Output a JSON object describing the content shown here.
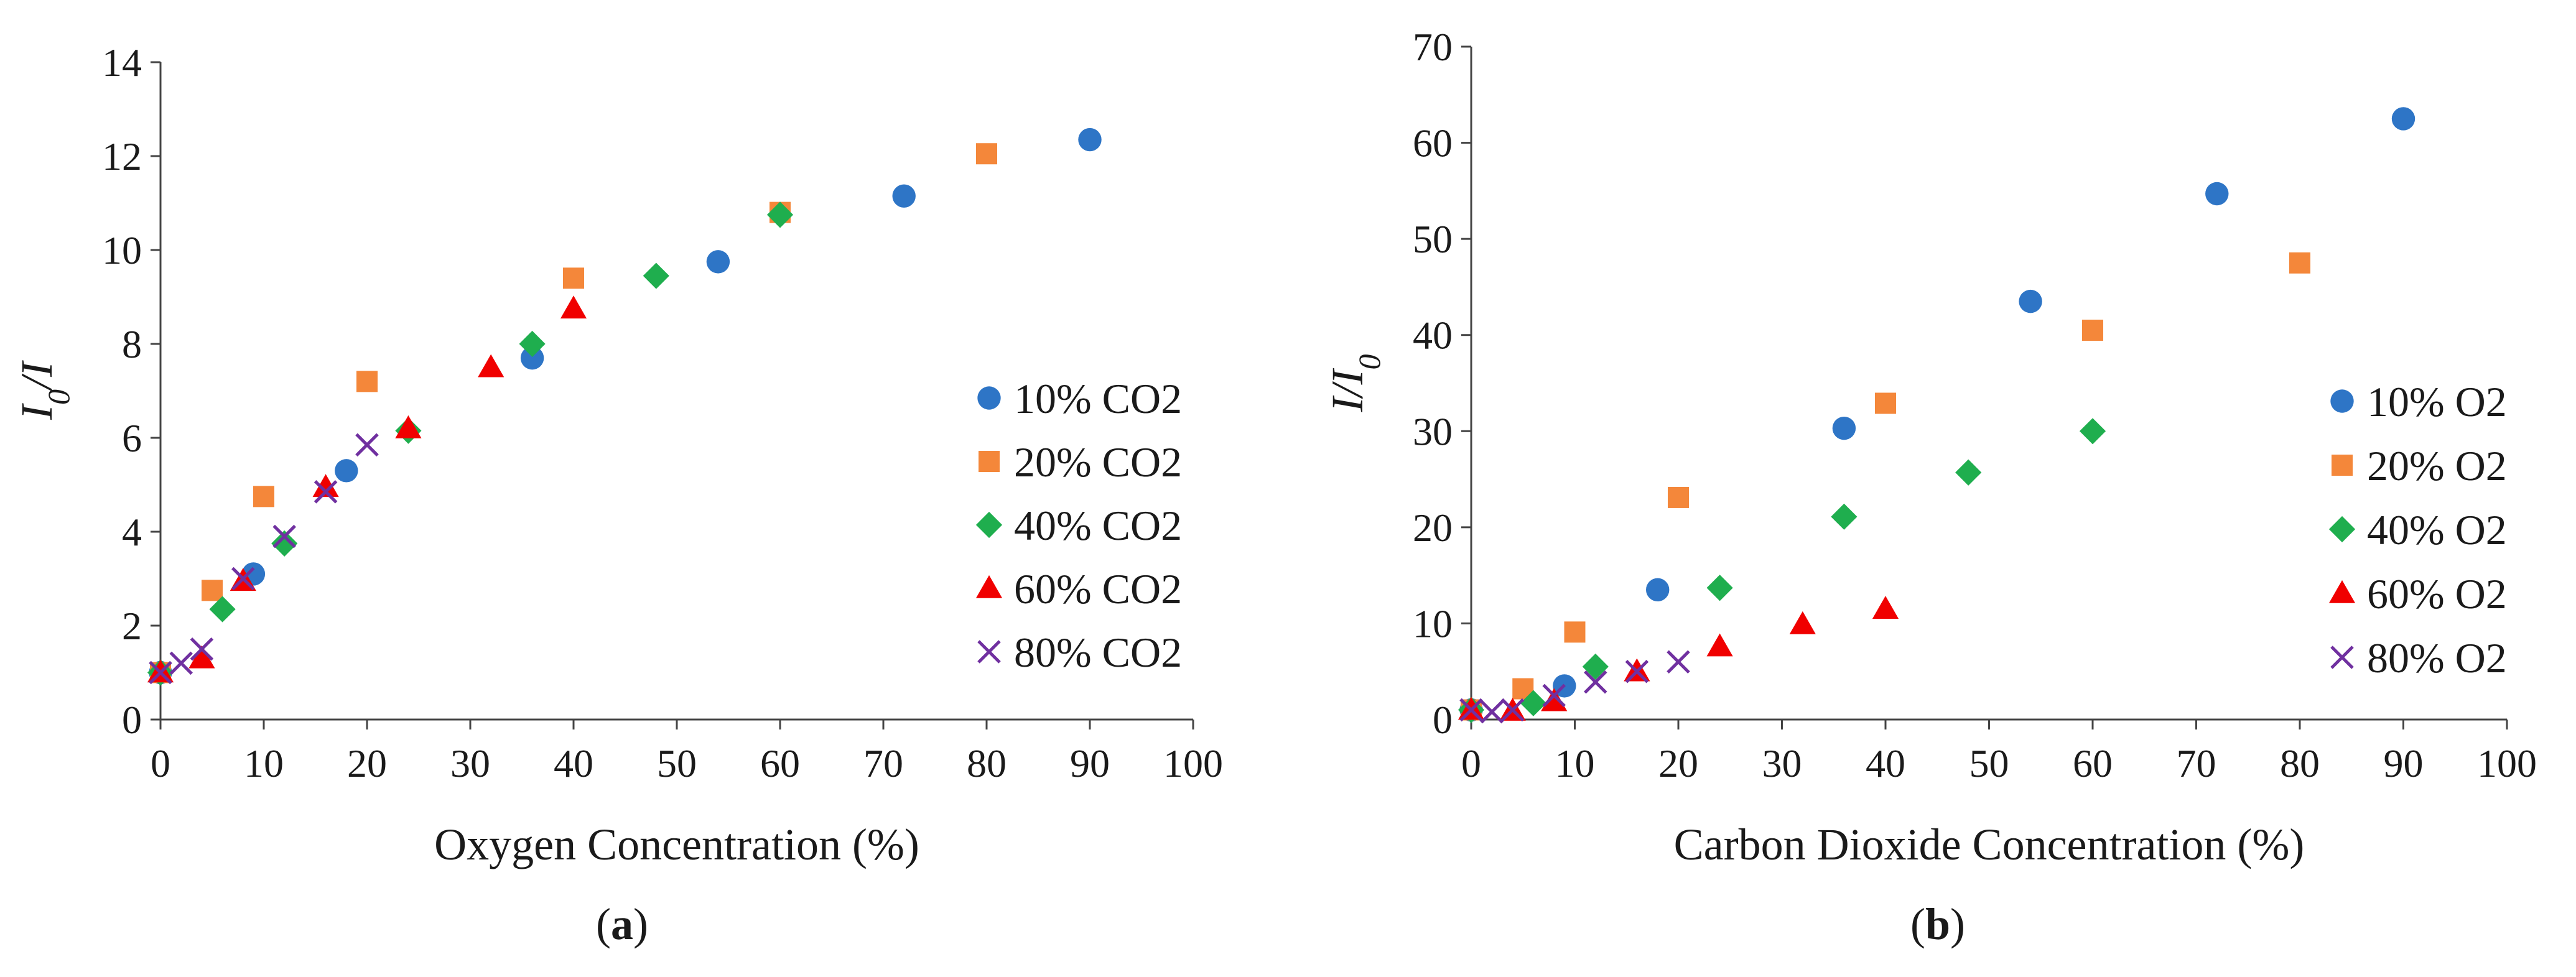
{
  "chart_data": [
    {
      "type": "scatter",
      "panel_label": "a",
      "title": "",
      "xlabel": "Oxygen Concentration (%)",
      "ylabel": "I0/I",
      "xlim": [
        0,
        100
      ],
      "ylim": [
        0,
        14
      ],
      "xticks": [
        0,
        10,
        20,
        30,
        40,
        50,
        60,
        70,
        80,
        90,
        100
      ],
      "yticks": [
        0,
        2,
        4,
        6,
        8,
        10,
        12,
        14
      ],
      "grid": false,
      "legend_position": "right",
      "series": [
        {
          "name": "10% CO2",
          "marker": "circle",
          "color": "#2E75C6",
          "x": [
            0,
            9,
            18,
            36,
            54,
            72,
            90
          ],
          "y": [
            1.0,
            3.1,
            5.3,
            7.7,
            9.75,
            11.15,
            12.35
          ]
        },
        {
          "name": "20% CO2",
          "marker": "square",
          "color": "#F4873A",
          "x": [
            0,
            5,
            10,
            20,
            40,
            60,
            80
          ],
          "y": [
            1.0,
            2.75,
            4.75,
            7.2,
            9.4,
            10.8,
            12.05
          ]
        },
        {
          "name": "40% CO2",
          "marker": "diamond",
          "color": "#1FAE4E",
          "x": [
            0,
            6,
            12,
            24,
            36,
            48,
            60
          ],
          "y": [
            1.0,
            2.35,
            3.75,
            6.15,
            8.0,
            9.45,
            10.75
          ]
        },
        {
          "name": "60% CO2",
          "marker": "triangle",
          "color": "#F00000",
          "x": [
            0,
            4,
            8,
            16,
            24,
            32,
            40
          ],
          "y": [
            1.0,
            1.3,
            2.95,
            4.95,
            6.2,
            7.5,
            8.75
          ]
        },
        {
          "name": "80% CO2",
          "marker": "x",
          "color": "#7030A0",
          "x": [
            0,
            2,
            4,
            8,
            12,
            16,
            20
          ],
          "y": [
            1.0,
            1.2,
            1.5,
            3.0,
            3.9,
            4.85,
            5.85
          ]
        }
      ]
    },
    {
      "type": "scatter",
      "panel_label": "b",
      "title": "",
      "xlabel": "Carbon Dioxide Concentration (%)",
      "ylabel": "I/I0",
      "xlim": [
        0,
        100
      ],
      "ylim": [
        0,
        70
      ],
      "xticks": [
        0,
        10,
        20,
        30,
        40,
        50,
        60,
        70,
        80,
        90,
        100
      ],
      "yticks": [
        0,
        10,
        20,
        30,
        40,
        50,
        60,
        70
      ],
      "grid": false,
      "legend_position": "right",
      "series": [
        {
          "name": "10% O2",
          "marker": "circle",
          "color": "#2E75C6",
          "x": [
            0,
            9,
            18,
            36,
            54,
            72,
            90
          ],
          "y": [
            1.0,
            3.5,
            13.5,
            30.3,
            43.5,
            54.7,
            62.5
          ]
        },
        {
          "name": "20% O2",
          "marker": "square",
          "color": "#F4873A",
          "x": [
            0,
            5,
            10,
            20,
            40,
            60,
            80
          ],
          "y": [
            1.0,
            3.2,
            9.1,
            23.1,
            32.9,
            40.5,
            47.5
          ]
        },
        {
          "name": "40% O2",
          "marker": "diamond",
          "color": "#1FAE4E",
          "x": [
            0,
            6,
            12,
            24,
            36,
            48,
            60
          ],
          "y": [
            1.0,
            1.7,
            5.5,
            13.7,
            21.1,
            25.7,
            30.0
          ]
        },
        {
          "name": "60% O2",
          "marker": "triangle",
          "color": "#F00000",
          "x": [
            0,
            4,
            8,
            16,
            24,
            32,
            40
          ],
          "y": [
            1.0,
            0.9,
            1.9,
            5.0,
            7.6,
            9.9,
            11.5
          ]
        },
        {
          "name": "80% O2",
          "marker": "x",
          "color": "#7030A0",
          "x": [
            0,
            2,
            4,
            8,
            12,
            16,
            20
          ],
          "y": [
            1.0,
            0.8,
            1.0,
            2.5,
            3.9,
            5.0,
            6.0
          ]
        }
      ]
    }
  ]
}
